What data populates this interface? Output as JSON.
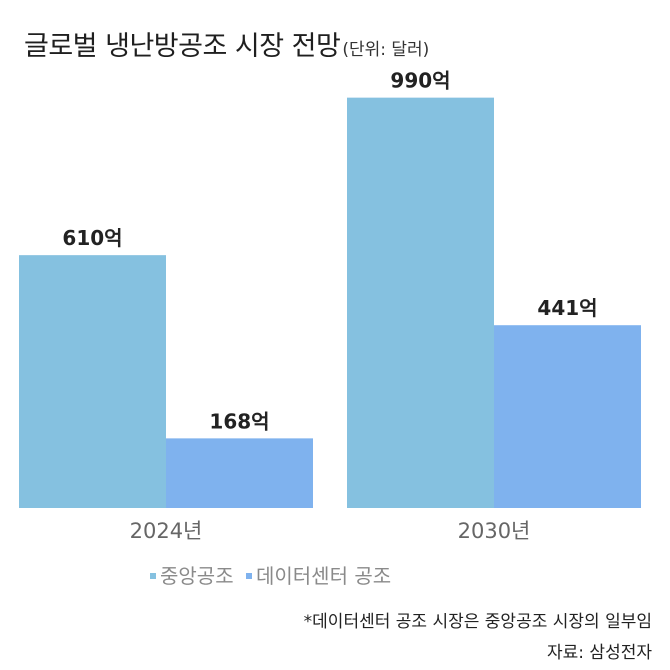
{
  "title": "글로벌 냉난방공조 시장 전망",
  "subtitle": "(단위: 달러)",
  "footnote": "*데이터센터 공조 시장은 중앙공조 시장의 일부임",
  "source": "자료: 삼성전자",
  "colors": {
    "central": "#85C1E0",
    "datacenter": "#7FB2EE",
    "axis": "#cccccc"
  },
  "chart_data": {
    "type": "bar",
    "categories": [
      "2024년",
      "2030년"
    ],
    "series": [
      {
        "name": "중앙공조",
        "values": [
          610,
          990
        ],
        "labels": [
          "610억",
          "990억"
        ]
      },
      {
        "name": "데이터센터 공조",
        "values": [
          168,
          441
        ],
        "labels": [
          "168억",
          "441억"
        ]
      }
    ],
    "title": "글로벌 냉난방공조 시장 전망",
    "subtitle": "(단위: 달러)",
    "ylim": [
      0,
      1000
    ],
    "grid": false,
    "legend": "bottom-center"
  }
}
